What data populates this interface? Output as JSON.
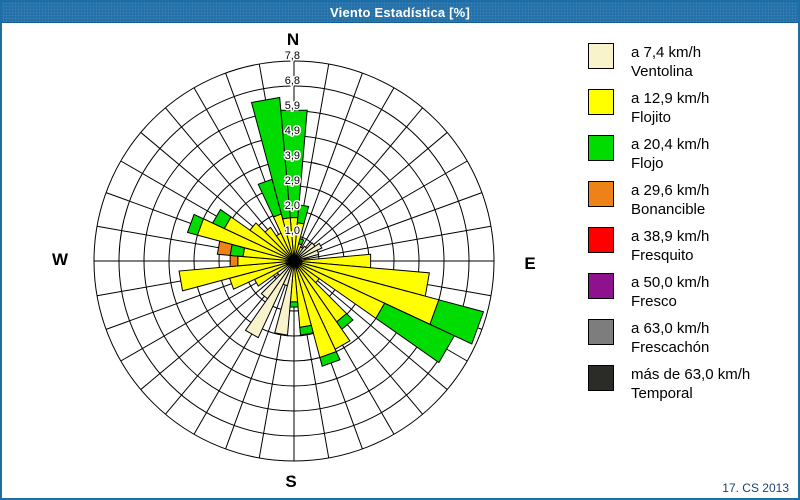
{
  "window": {
    "title": "Viento Estadística [%]"
  },
  "footer": {
    "credit": "17. CS 2013"
  },
  "compass": {
    "north": "N",
    "east": "E",
    "south": "S",
    "west": "W"
  },
  "legend": {
    "items": [
      {
        "speed": "a 7,4 km/h",
        "name": "Ventolina",
        "color": "#F9F3CB"
      },
      {
        "speed": "a 12,9 km/h",
        "name": "Flojito",
        "color": "#FFFF00"
      },
      {
        "speed": "a 20,4 km/h",
        "name": "Flojo",
        "color": "#00DC00"
      },
      {
        "speed": "a 29,6 km/h",
        "name": "Bonancible",
        "color": "#EF8216"
      },
      {
        "speed": "a 38,9 km/h",
        "name": "Fresquito",
        "color": "#FF0000"
      },
      {
        "speed": "a 50,0 km/h",
        "name": "Fresco",
        "color": "#8E128E"
      },
      {
        "speed": "a 63,0 km/h",
        "name": "Frescachón",
        "color": "#7D7D7D"
      },
      {
        "speed": "más de 63,0 km/h",
        "name": "Temporal",
        "color": "#2B2B28"
      }
    ]
  },
  "chart_data": {
    "type": "wind-rose (polar stacked bar)",
    "units": "%",
    "rmax": 7.8,
    "num_rings": 8,
    "ring_labels": [
      "1,0",
      "2,0",
      "2,9",
      "3,9",
      "4,9",
      "5,9",
      "6,8",
      "7,8"
    ],
    "sector_width_deg": 10,
    "directions_deg": [
      0,
      10,
      20,
      30,
      40,
      50,
      60,
      70,
      80,
      90,
      100,
      110,
      120,
      130,
      140,
      150,
      160,
      170,
      180,
      190,
      200,
      210,
      220,
      230,
      240,
      250,
      260,
      270,
      280,
      290,
      300,
      310,
      320,
      330,
      340,
      350
    ],
    "series": [
      {
        "name": "Ventolina",
        "color": "#F9F3CB",
        "values": [
          0.2,
          0.2,
          0.2,
          0.6,
          0.7,
          1.0,
          1.2,
          1.0,
          0.4,
          0.3,
          0.3,
          0.3,
          0.3,
          0.2,
          0.2,
          0.3,
          0.3,
          0.2,
          0.2,
          2.9,
          1.0,
          3.3,
          1.8,
          0.8,
          0.3,
          0.3,
          0.3,
          0.2,
          0.2,
          0.2,
          0.2,
          0.2,
          0.2,
          0.2,
          0.3,
          0.2
        ]
      },
      {
        "name": "Flojito",
        "color": "#FFFF00",
        "values": [
          1.5,
          1.3,
          0.5,
          0,
          0,
          0,
          0,
          0,
          0,
          2.7,
          5.0,
          5.55,
          3.6,
          1.0,
          2.7,
          3.5,
          3.6,
          2.4,
          1.4,
          0,
          0,
          0,
          0,
          0,
          1.4,
          2.3,
          4.2,
          2.0,
          1.8,
          3.7,
          2.8,
          1.9,
          1.4,
          1.0,
          1.6,
          1.5
        ]
      },
      {
        "name": "Flojo",
        "color": "#00DC00",
        "values": [
          4.2,
          0.7,
          0.2,
          0,
          0,
          0,
          0,
          0,
          0,
          0,
          0,
          1.8,
          3.0,
          0,
          0.35,
          0,
          0.35,
          0.3,
          0.2,
          0,
          0,
          0,
          0,
          0,
          0,
          0,
          0,
          0,
          0.5,
          0.4,
          0.5,
          0,
          0,
          0,
          1.4,
          4.7
        ]
      },
      {
        "name": "Bonancible",
        "color": "#EF8216",
        "values": [
          0,
          0,
          0,
          0,
          0,
          0,
          0,
          0,
          0,
          0,
          0,
          0,
          0,
          0,
          0,
          0,
          0,
          0,
          0,
          0,
          0,
          0,
          0,
          0,
          0,
          0,
          0,
          0.3,
          0.5,
          0,
          0,
          0,
          0,
          0,
          0,
          0
        ]
      },
      {
        "name": "Fresquito",
        "color": "#FF0000",
        "values": [
          0,
          0,
          0,
          0,
          0,
          0,
          0,
          0,
          0,
          0,
          0,
          0,
          0,
          0,
          0,
          0,
          0,
          0,
          0,
          0,
          0,
          0,
          0,
          0,
          0,
          0,
          0,
          0,
          0,
          0,
          0,
          0,
          0,
          0,
          0,
          0
        ]
      },
      {
        "name": "Fresco",
        "color": "#8E128E",
        "values": [
          0,
          0,
          0,
          0,
          0,
          0,
          0,
          0,
          0,
          0,
          0,
          0,
          0,
          0,
          0,
          0,
          0,
          0,
          0,
          0,
          0,
          0,
          0,
          0,
          0,
          0,
          0,
          0,
          0,
          0,
          0,
          0,
          0,
          0,
          0,
          0
        ]
      },
      {
        "name": "Frescachón",
        "color": "#7D7D7D",
        "values": [
          0,
          0,
          0,
          0,
          0,
          0,
          0,
          0,
          0,
          0,
          0,
          0,
          0,
          0,
          0,
          0,
          0,
          0,
          0,
          0,
          0,
          0,
          0,
          0,
          0,
          0,
          0,
          0,
          0,
          0,
          0,
          0,
          0,
          0,
          0,
          0
        ]
      },
      {
        "name": "Temporal",
        "color": "#2B2B28",
        "values": [
          0,
          0,
          0,
          0,
          0,
          0,
          0,
          0,
          0,
          0,
          0,
          0,
          0,
          0,
          0,
          0,
          0,
          0,
          0,
          0,
          0,
          0,
          0,
          0,
          0,
          0,
          0,
          0,
          0,
          0,
          0,
          0,
          0,
          0,
          0,
          0
        ]
      }
    ]
  }
}
